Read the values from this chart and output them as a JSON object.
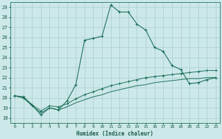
{
  "xlabel": "Humidex (Indice chaleur)",
  "ylabel": "",
  "bg_color": "#cce8e8",
  "grid_color": "#aacccc",
  "line_color": "#1a6e5a",
  "xlim": [
    -0.5,
    23.5
  ],
  "ylim": [
    17.5,
    29.5
  ],
  "xticks": [
    0,
    1,
    2,
    3,
    4,
    5,
    6,
    7,
    8,
    9,
    10,
    11,
    12,
    13,
    14,
    15,
    16,
    17,
    18,
    19,
    20,
    21,
    22,
    23
  ],
  "yticks": [
    18,
    19,
    20,
    21,
    22,
    23,
    24,
    25,
    26,
    27,
    28,
    29
  ],
  "series1_x": [
    0,
    1,
    2,
    3,
    4,
    5,
    6,
    7,
    8,
    9,
    10,
    11,
    12,
    13,
    14,
    15,
    16,
    17,
    18,
    19,
    20,
    21,
    22,
    23
  ],
  "series1_y": [
    20.2,
    20.1,
    19.3,
    18.3,
    19.0,
    18.8,
    19.7,
    21.3,
    25.7,
    25.9,
    26.1,
    29.2,
    28.5,
    28.5,
    27.3,
    26.7,
    25.0,
    24.6,
    23.2,
    22.8,
    21.4,
    21.5,
    21.8,
    22.0
  ],
  "series2_x": [
    0,
    1,
    2,
    3,
    4,
    5,
    6,
    7,
    8,
    9,
    10,
    11,
    12,
    13,
    14,
    15,
    16,
    17,
    18,
    19,
    20,
    21,
    22,
    23
  ],
  "series2_y": [
    20.2,
    20.0,
    19.3,
    18.7,
    19.2,
    19.1,
    19.4,
    19.9,
    20.3,
    20.6,
    20.9,
    21.2,
    21.4,
    21.6,
    21.8,
    22.0,
    22.1,
    22.2,
    22.3,
    22.4,
    22.5,
    22.6,
    22.7,
    22.7
  ],
  "series3_x": [
    0,
    1,
    2,
    3,
    4,
    5,
    6,
    7,
    8,
    9,
    10,
    11,
    12,
    13,
    14,
    15,
    16,
    17,
    18,
    19,
    20,
    21,
    22,
    23
  ],
  "series3_y": [
    20.2,
    20.0,
    19.2,
    18.5,
    19.0,
    18.8,
    19.1,
    19.5,
    19.8,
    20.1,
    20.3,
    20.6,
    20.8,
    21.0,
    21.2,
    21.3,
    21.5,
    21.6,
    21.7,
    21.8,
    21.9,
    21.9,
    22.0,
    22.0
  ]
}
